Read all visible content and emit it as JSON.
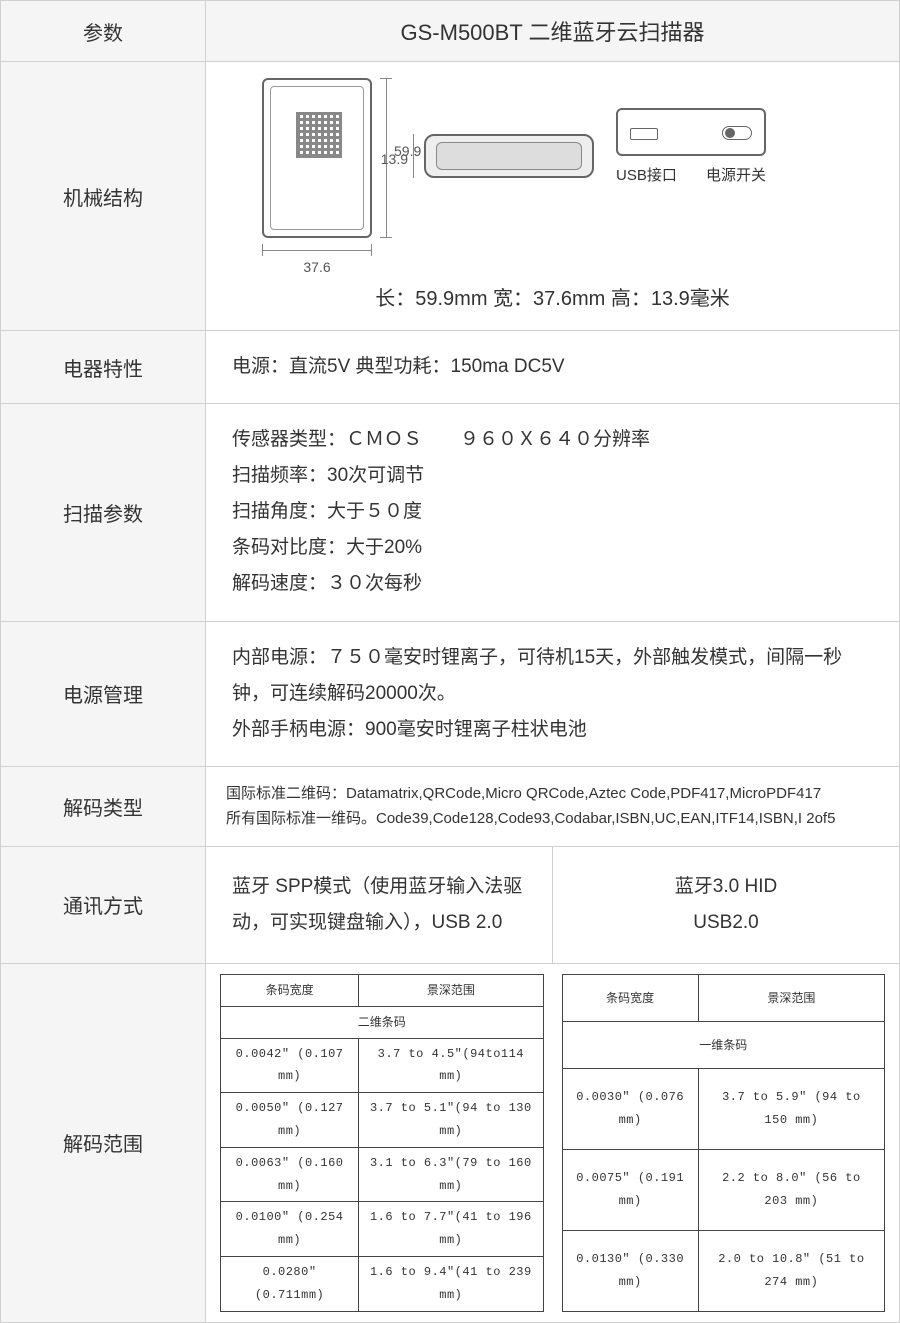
{
  "header": {
    "param_label": "参数",
    "product_title": "GS-M500BT 二维蓝牙云扫描器"
  },
  "rows": {
    "mechanical": {
      "label": "机械结构",
      "dim_h": "59.9",
      "dim_w": "37.6",
      "dim_d": "13.9",
      "usb_label": "USB接口",
      "power_label": "电源开关",
      "dims_line": "长：59.9mm  宽：37.6mm  高：13.9毫米"
    },
    "electrical": {
      "label": "电器特性",
      "value": "电源：直流5V  典型功耗：150ma DC5V"
    },
    "scan": {
      "label": "扫描参数",
      "l1": "传感器类型：ＣＭＯＳ　　９６０Ｘ６４０分辨率",
      "l2": "扫描频率：30次可调节",
      "l3": "扫描角度：大于５０度",
      "l4": "条码对比度：大于20%",
      "l5": "解码速度：３０次每秒"
    },
    "power": {
      "label": "电源管理",
      "l1": "内部电源：７５０毫安时锂离子，可待机15天，外部触发模式，间隔一秒钟，可连续解码20000次。",
      "l2": "外部手柄电源：900毫安时锂离子柱状电池"
    },
    "decode_type": {
      "label": "解码类型",
      "l1": "国际标准二维码：Datamatrix,QRCode,Micro QRCode,Aztec Code,PDF417,MicroPDF417",
      "l2": "所有国际标准一维码。Code39,Code128,Code93,Codabar,ISBN,UC,EAN,ITF14,ISBN,I 2of5"
    },
    "comm": {
      "label": "通讯方式",
      "left": "蓝牙 SPP模式（使用蓝牙输入法驱动，可实现键盘输入），USB 2.0",
      "right1": "蓝牙3.0 HID",
      "right2": "USB2.0"
    },
    "range": {
      "label": "解码范围",
      "col_width": "条码宽度",
      "col_depth": "景深范围",
      "sub_2d": "二维条码",
      "sub_1d": "一维条码",
      "t2d": [
        [
          "0.0042″ (0.107 mm)",
          "3.7 to 4.5″(94to114 mm)"
        ],
        [
          "0.0050″ (0.127 mm)",
          "3.7 to 5.1″(94 to 130 mm)"
        ],
        [
          "0.0063″ (0.160 mm)",
          "3.1 to 6.3″(79 to 160 mm)"
        ],
        [
          "0.0100″ (0.254 mm)",
          "1.6 to 7.7″(41 to 196 mm)"
        ],
        [
          "0.0280″  (0.711mm)",
          "1.6 to 9.4″(41 to 239 mm)"
        ]
      ],
      "t1d": [
        [
          "0.0030″ (0.076 mm)",
          "3.7 to 5.9″ (94 to 150 mm)"
        ],
        [
          "0.0075″ (0.191 mm)",
          "2.2 to 8.0″ (56 to 203 mm)"
        ],
        [
          "0.0130″ (0.330 mm)",
          "2.0 to 10.8″ (51 to 274 mm)"
        ]
      ]
    }
  },
  "colors": {
    "border": "#d0d0d0",
    "header_bg": "#f5f5f5",
    "text": "#333333",
    "draw_line": "#666666"
  }
}
